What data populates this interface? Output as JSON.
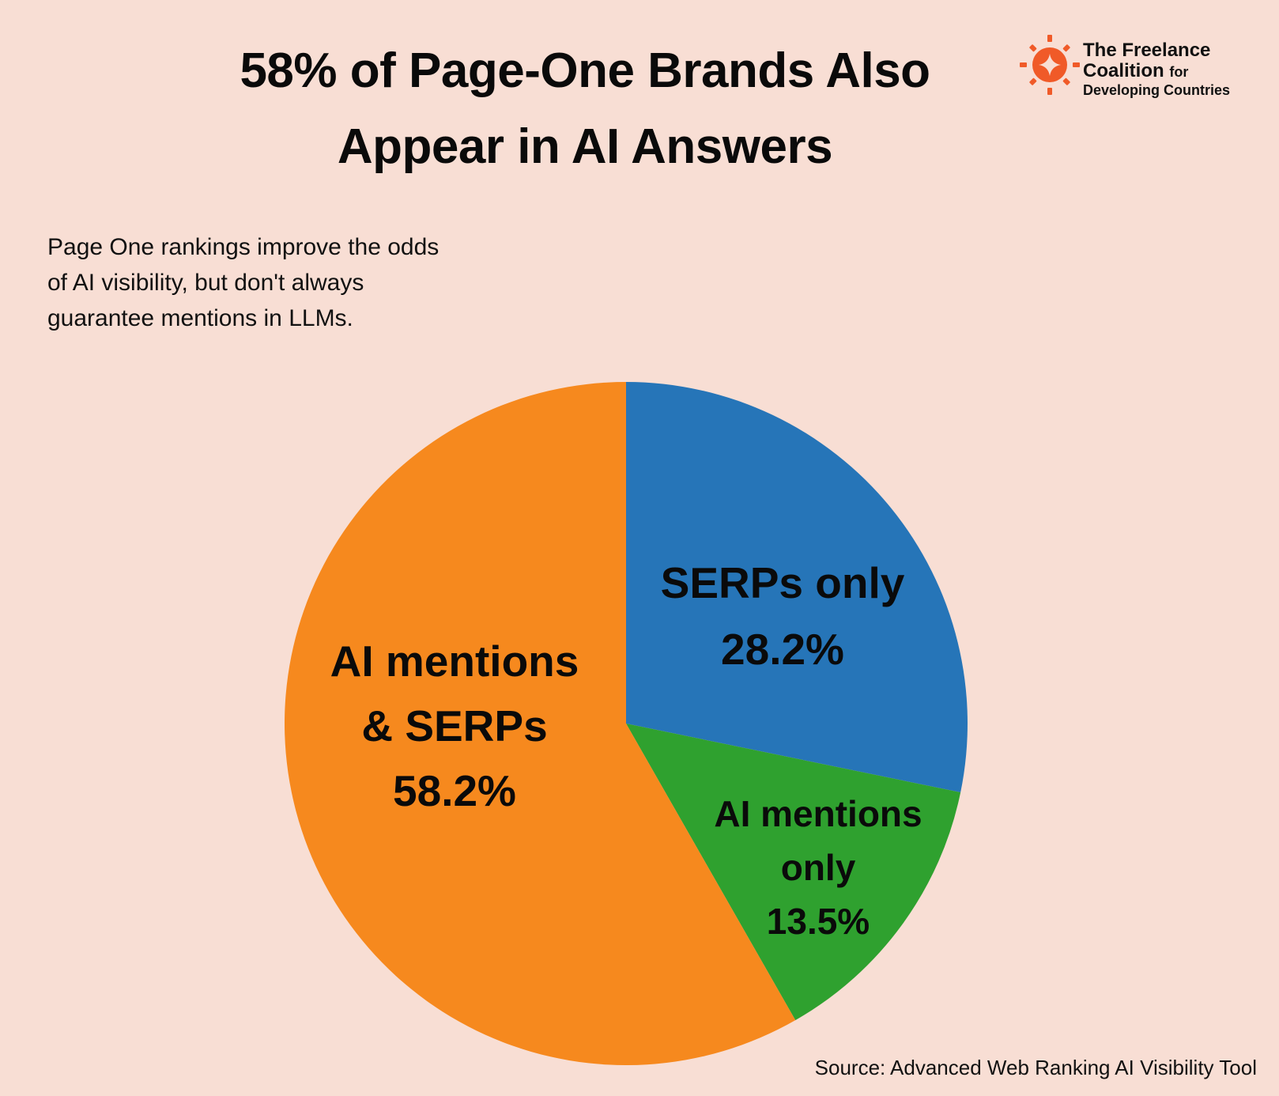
{
  "title": {
    "line1": "58% of Page-One Brands Also",
    "line2": "Appear in AI Answers"
  },
  "subtitle": {
    "line1": "Page One rankings improve the odds",
    "line2": "of AI visibility, but don't always",
    "line3": "guarantee mentions in LLMs."
  },
  "logo": {
    "line1": "The Freelance",
    "line2": "Coalition",
    "line2_suffix": "for",
    "line3": "Developing Countries",
    "icon": "sun-diamond-icon",
    "color": "#F05A28"
  },
  "source": "Source: Advanced Web Ranking AI Visibility Tool",
  "chart_data": {
    "type": "pie",
    "title": "58% of Page-One Brands Also Appear in AI Answers",
    "start_angle_deg": 0,
    "direction": "clockwise",
    "slices": [
      {
        "name": "SERPs only",
        "value": 28.2,
        "value_label": "28.2%",
        "label_lines": [
          "SERPs only"
        ],
        "color": "#2675B8"
      },
      {
        "name": "AI mentions only",
        "value": 13.5,
        "value_label": "13.5%",
        "label_lines": [
          "AI mentions",
          "only"
        ],
        "color": "#2FA12F"
      },
      {
        "name": "AI mentions & SERPs",
        "value": 58.2,
        "value_label": "58.2%",
        "label_lines": [
          "AI mentions",
          "& SERPs"
        ],
        "color": "#F6891E"
      }
    ]
  }
}
